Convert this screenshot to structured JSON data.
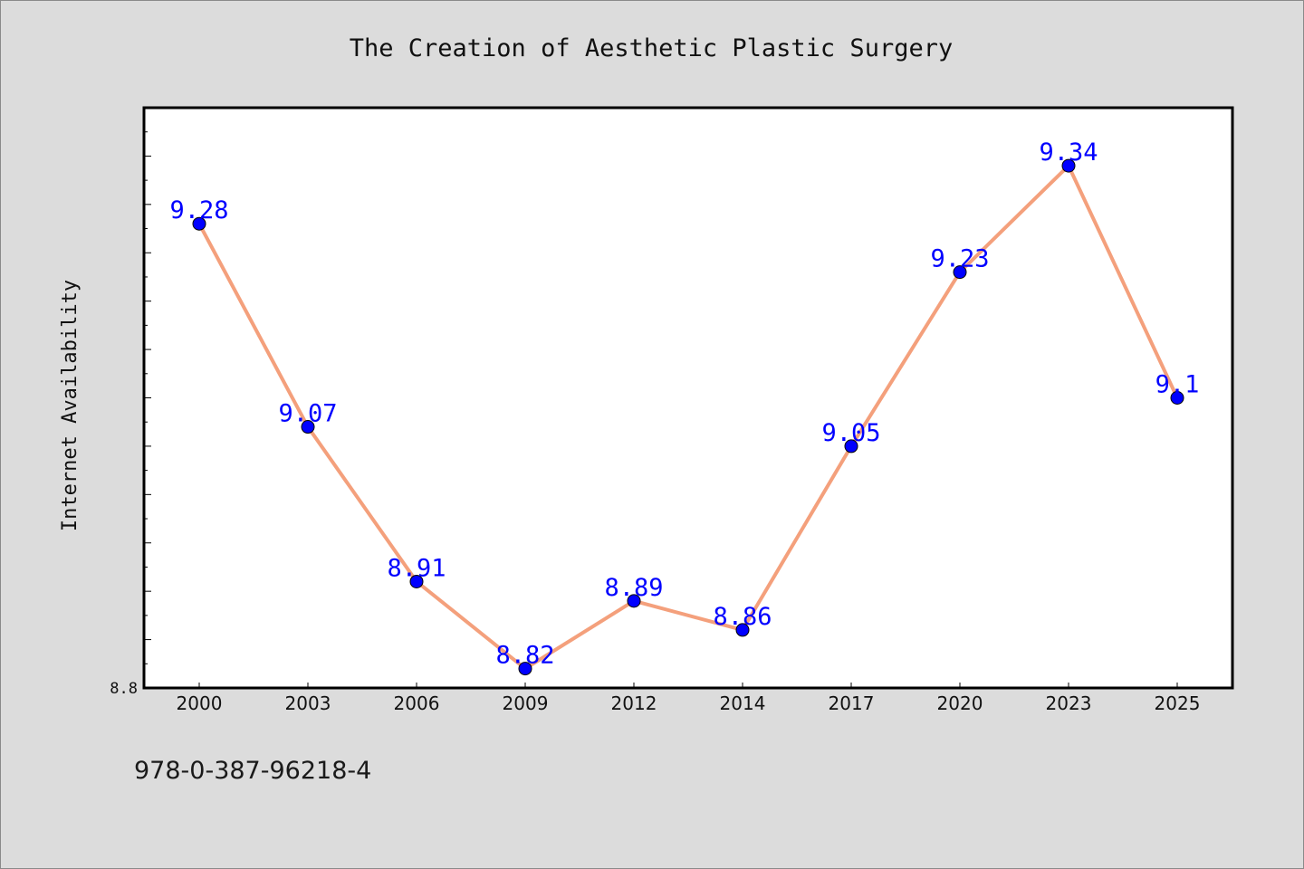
{
  "chart_data": {
    "type": "line",
    "title": "The Creation of Aesthetic Plastic Surgery",
    "xlabel": "",
    "ylabel": "Internet Availability",
    "categories": [
      "2000",
      "2003",
      "2006",
      "2009",
      "2012",
      "2014",
      "2017",
      "2020",
      "2023",
      "2025"
    ],
    "values": [
      9.28,
      9.07,
      8.91,
      8.82,
      8.89,
      8.86,
      9.05,
      9.23,
      9.34,
      9.1
    ],
    "data_labels": [
      "9.28",
      "9.07",
      "8.91",
      "8.82",
      "8.89",
      "8.86",
      "9.05",
      "9.23",
      "9.34",
      "9.1"
    ],
    "ylim": [
      8.8,
      9.4
    ],
    "y_tick_labels": [
      "8.8"
    ],
    "grid": false,
    "legend": "none",
    "colors": {
      "line": "#f4a07c",
      "marker": "#0000ff",
      "label": "#0000ff",
      "plot_bg": "#ffffff",
      "page_bg": "#dcdcdc"
    }
  },
  "footnote": "978-0-387-96218-4"
}
